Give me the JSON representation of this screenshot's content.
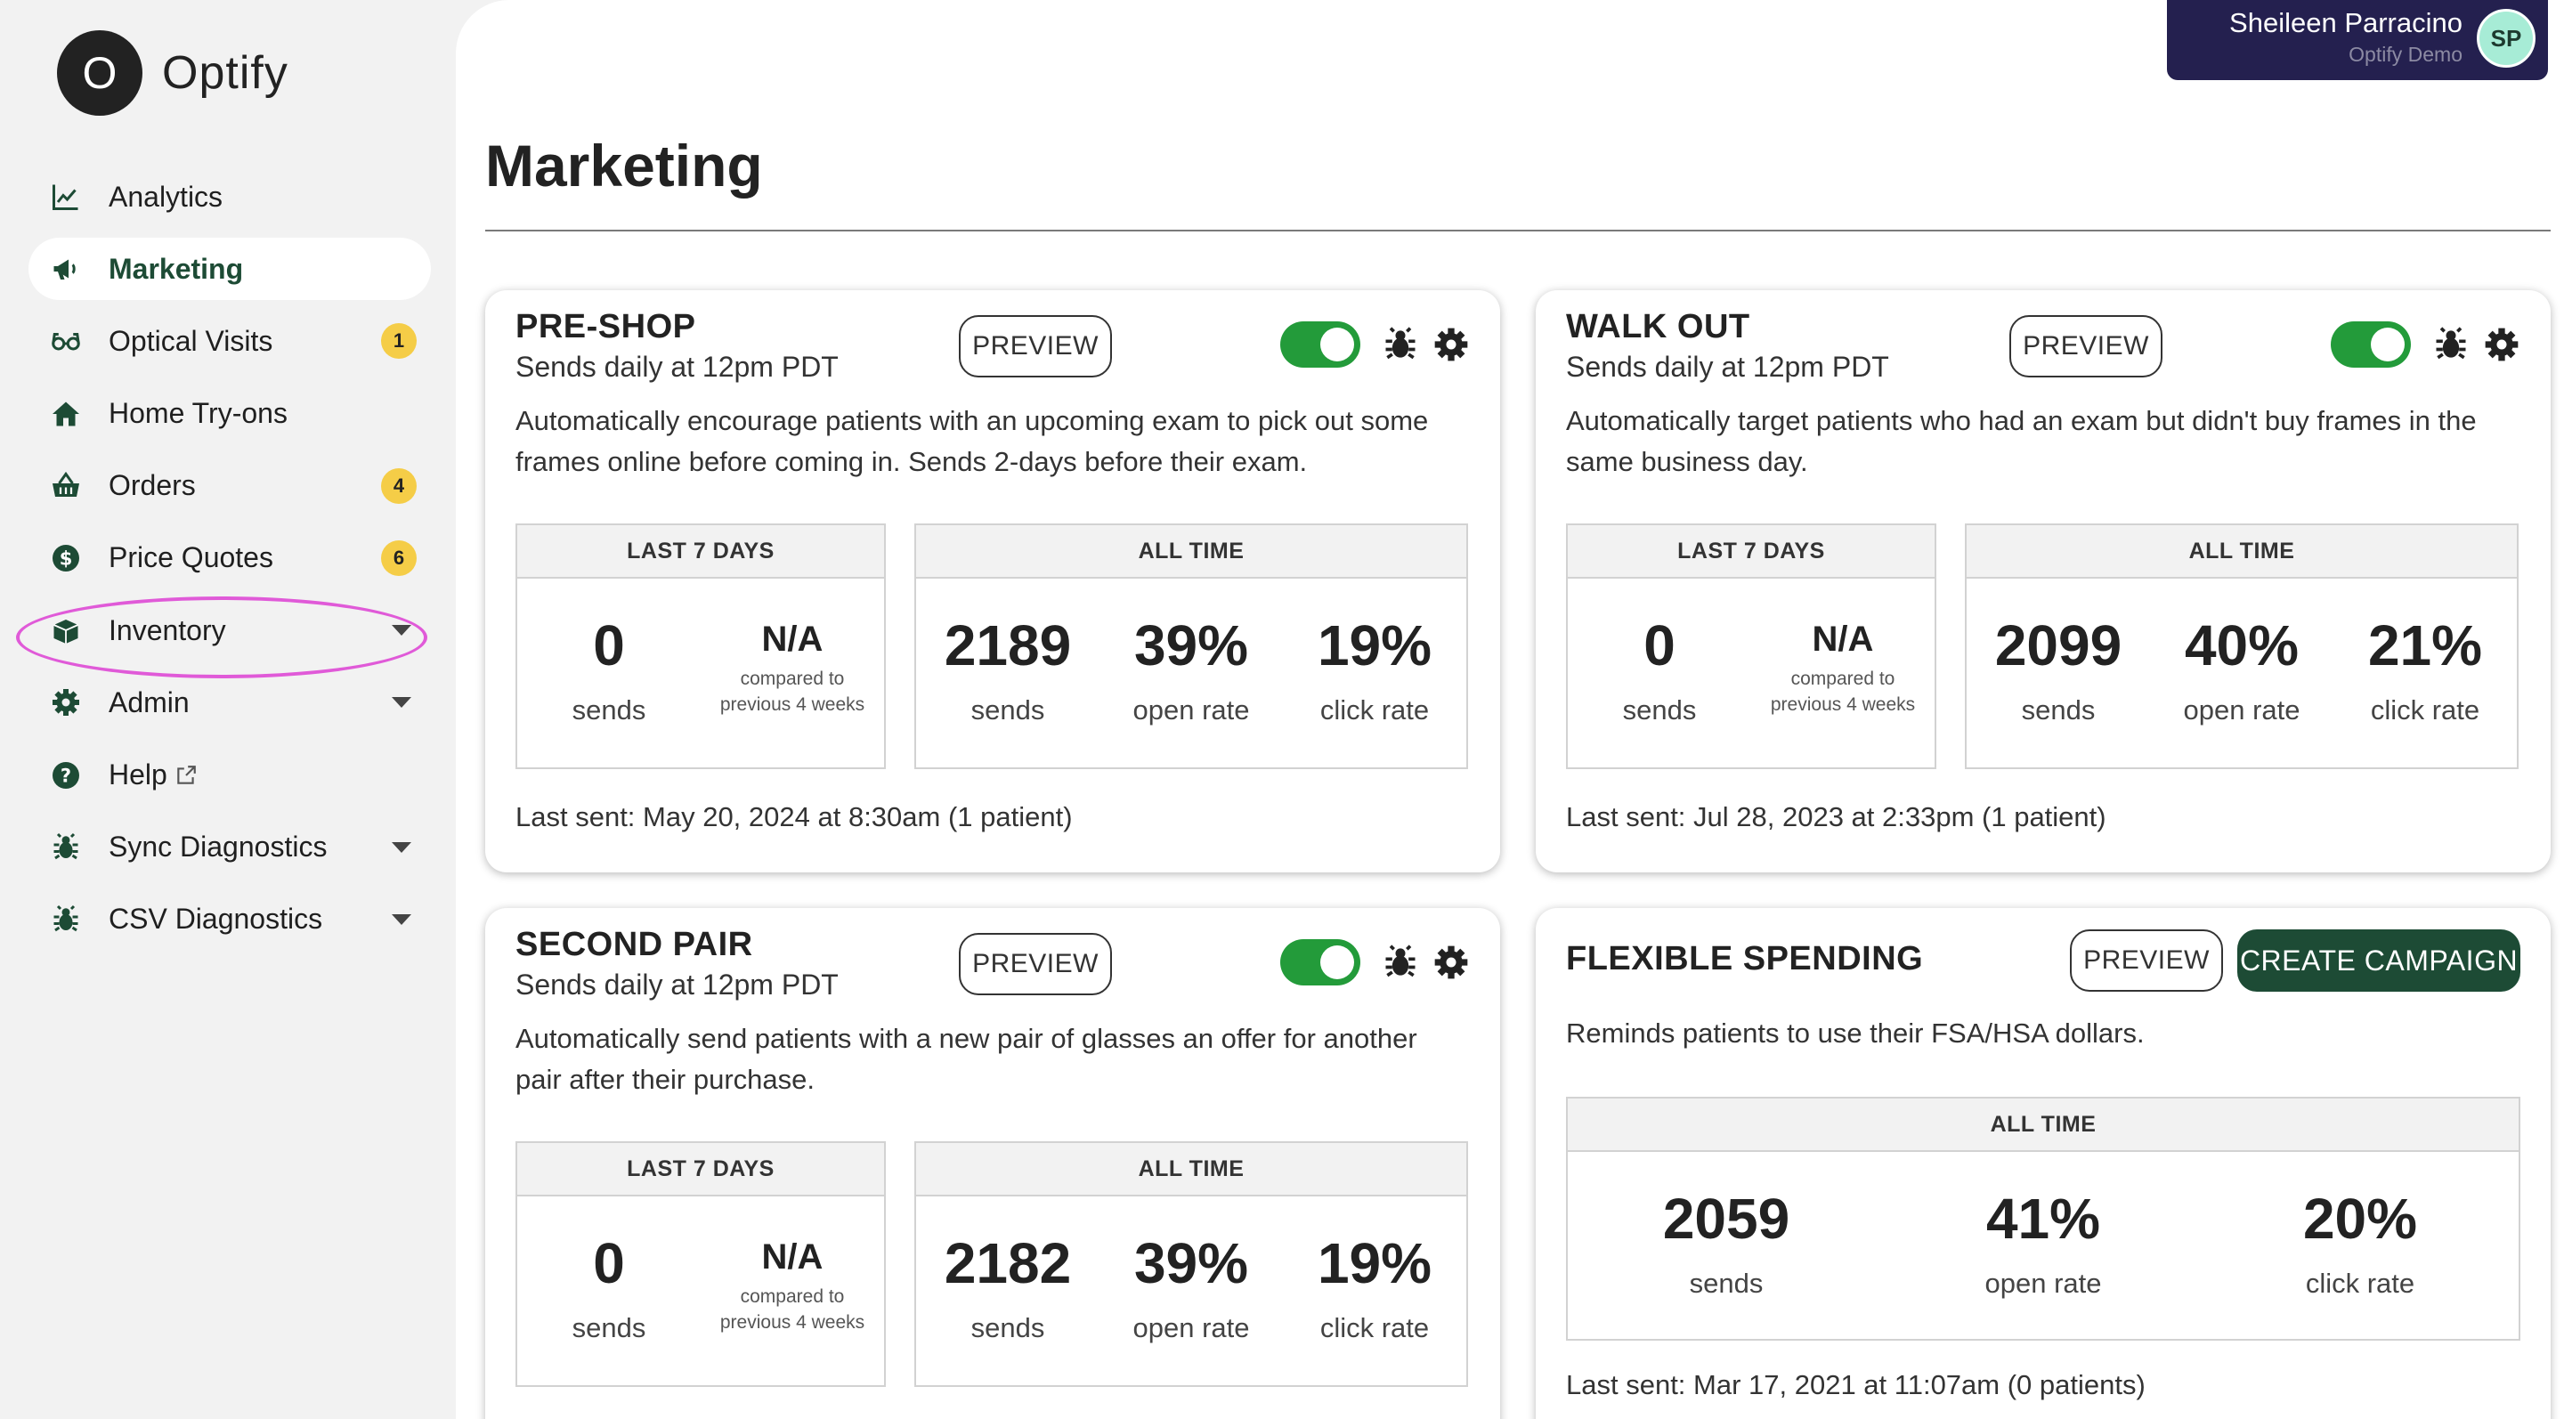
{
  "brand": {
    "logo_letter": "O",
    "name": "Optify"
  },
  "user": {
    "name": "Sheileen Parracino",
    "org": "Optify Demo",
    "initials": "SP"
  },
  "sidebar": {
    "items": [
      {
        "label": "Analytics",
        "icon": "chart-line-icon"
      },
      {
        "label": "Marketing",
        "icon": "megaphone-icon",
        "active": true
      },
      {
        "label": "Optical Visits",
        "icon": "glasses-icon",
        "badge": "1"
      },
      {
        "label": "Home Try-ons",
        "icon": "home-icon"
      },
      {
        "label": "Orders",
        "icon": "basket-icon",
        "badge": "4"
      },
      {
        "label": "Price Quotes",
        "icon": "dollar-icon",
        "badge": "6"
      },
      {
        "label": "Inventory",
        "icon": "box-icon",
        "caret": true
      },
      {
        "label": "Admin",
        "icon": "gear-icon",
        "caret": true
      },
      {
        "label": "Help",
        "icon": "question-icon",
        "external": true
      },
      {
        "label": "Sync Diagnostics",
        "icon": "bug-icon",
        "caret": true
      },
      {
        "label": "CSV Diagnostics",
        "icon": "bug-icon",
        "caret": true
      }
    ]
  },
  "page": {
    "title": "Marketing"
  },
  "common": {
    "preview_label": "PREVIEW",
    "last7_header": "LAST 7 DAYS",
    "alltime_header": "ALL TIME",
    "sends_label": "sends",
    "open_rate_label": "open rate",
    "click_rate_label": "click rate",
    "compared_note_line1": "compared to",
    "compared_note_line2": "previous 4 weeks"
  },
  "campaigns": {
    "preshop": {
      "title": "PRE-SHOP",
      "schedule": "Sends daily at 12pm PDT",
      "desc_line1": "Automatically encourage patients with an upcoming exam to pick out some",
      "desc_line2": "frames online before coming in. Sends 2-days before their exam.",
      "last7_sends": "0",
      "last7_compare": "N/A",
      "all_sends": "2189",
      "all_open": "39%",
      "all_click": "19%",
      "last_sent": "Last sent: May 20, 2024 at 8:30am (1 patient)",
      "enabled": true
    },
    "walkout": {
      "title": "WALK OUT",
      "schedule": "Sends daily at 12pm PDT",
      "desc_line1": "Automatically target patients who had an exam but didn't buy frames in the",
      "desc_line2": "same business day.",
      "last7_sends": "0",
      "last7_compare": "N/A",
      "all_sends": "2099",
      "all_open": "40%",
      "all_click": "21%",
      "last_sent": "Last sent: Jul 28, 2023 at 2:33pm (1 patient)",
      "enabled": true
    },
    "secondpair": {
      "title": "SECOND PAIR",
      "schedule": "Sends daily at 12pm PDT",
      "desc_line1": "Automatically send patients with a new pair of glasses an offer for another",
      "desc_line2": "pair after their purchase.",
      "last7_sends": "0",
      "last7_compare": "N/A",
      "all_sends": "2182",
      "all_open": "39%",
      "all_click": "19%",
      "enabled": true
    },
    "flexible": {
      "title": "FLEXIBLE SPENDING",
      "create_label": "CREATE CAMPAIGN",
      "desc_line1": "Reminds patients to use their FSA/HSA dollars.",
      "all_sends": "2059",
      "all_open": "41%",
      "all_click": "20%",
      "last_sent": "Last sent: Mar 17, 2021 at 11:07am (0 patients)"
    }
  },
  "colors": {
    "brand_green": "#1d4b35",
    "toggle_green": "#239b3a",
    "badge_yellow": "#f5cd47",
    "user_panel": "#24204f",
    "highlight": "#e05ad8"
  }
}
